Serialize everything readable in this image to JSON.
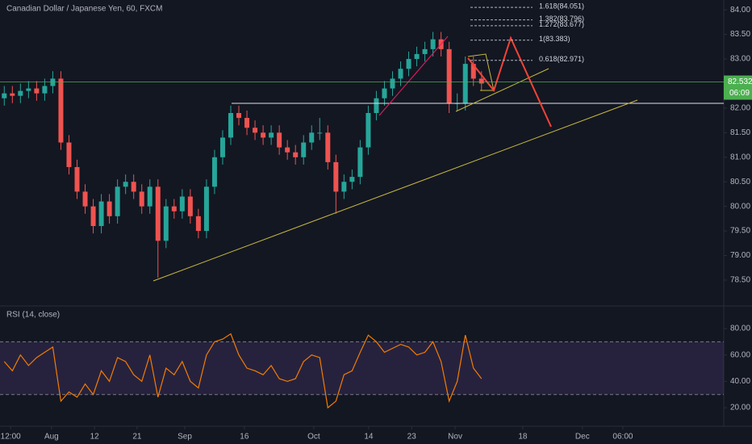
{
  "chart_data": {
    "type": "candlestick",
    "title": "Canadian Dollar / Japanese Yen, 60, FXCM",
    "up_color": "#26a69a",
    "down_color": "#ef5350",
    "x": [
      0,
      1.9,
      3.8,
      5.7,
      7.6,
      9.5,
      11.4,
      13.3,
      15.2,
      17.1,
      19,
      20.9,
      22.8,
      24.7,
      26.6,
      28.5,
      30.4,
      32.3,
      34.2,
      36.1,
      38,
      39.9,
      41.8,
      43.7,
      45.6,
      47.5,
      49.4,
      51.3,
      53.2,
      55.1,
      57,
      58.9,
      60.8,
      62.7,
      64.6,
      66.5,
      68.4,
      70.3,
      72.2,
      74.1,
      76,
      77.9,
      79.8,
      81.7,
      83.6,
      85.5,
      87.4,
      89.3,
      91.2,
      93.1,
      95,
      96.9,
      98.8,
      100.7,
      102.6,
      104.5,
      106.4,
      108.3,
      110.2,
      112.1
    ],
    "open": [
      82.2,
      82.3,
      82.25,
      82.35,
      82.4,
      82.3,
      82.45,
      82.6,
      81.3,
      80.8,
      80.3,
      80.0,
      79.6,
      80.1,
      79.8,
      80.4,
      80.5,
      80.3,
      80.0,
      80.4,
      79.3,
      80.0,
      79.9,
      80.2,
      79.8,
      79.5,
      80.4,
      81.0,
      81.4,
      81.9,
      81.8,
      81.6,
      81.5,
      81.4,
      81.5,
      81.2,
      81.1,
      81.0,
      81.3,
      81.5,
      81.5,
      80.9,
      80.3,
      80.5,
      80.6,
      81.2,
      81.9,
      82.2,
      82.4,
      82.6,
      82.8,
      83.0,
      83.1,
      83.2,
      83.4,
      83.2,
      82.1,
      82.1,
      82.9,
      82.6
    ],
    "high": [
      82.45,
      82.45,
      82.5,
      82.55,
      82.55,
      82.6,
      82.75,
      82.75,
      81.45,
      80.95,
      80.45,
      80.15,
      80.25,
      80.25,
      80.55,
      80.65,
      80.65,
      80.45,
      80.55,
      80.55,
      80.15,
      80.15,
      80.35,
      80.35,
      79.95,
      80.55,
      81.15,
      81.55,
      82.05,
      82.05,
      81.95,
      81.75,
      81.65,
      81.65,
      81.65,
      81.35,
      81.25,
      81.45,
      81.65,
      81.8,
      81.65,
      81.05,
      80.65,
      80.75,
      81.35,
      82.05,
      82.35,
      82.55,
      82.75,
      82.95,
      83.15,
      83.25,
      83.35,
      83.55,
      83.55,
      83.35,
      82.3,
      83.05,
      83.05,
      82.75
    ],
    "low": [
      82.05,
      82.1,
      82.1,
      82.2,
      82.15,
      82.15,
      82.3,
      81.15,
      80.65,
      80.15,
      79.85,
      79.45,
      79.45,
      79.65,
      79.65,
      80.25,
      80.15,
      79.85,
      79.85,
      78.55,
      79.15,
      79.75,
      79.75,
      79.65,
      79.35,
      79.35,
      80.25,
      80.85,
      81.25,
      81.65,
      81.45,
      81.35,
      81.25,
      81.25,
      81.05,
      80.95,
      80.85,
      80.85,
      81.15,
      81.35,
      80.75,
      79.85,
      80.15,
      80.35,
      80.45,
      81.05,
      81.75,
      82.05,
      82.25,
      82.45,
      82.65,
      82.85,
      82.95,
      83.05,
      83.05,
      81.9,
      81.95,
      81.95,
      82.45,
      82.35
    ],
    "close": [
      82.3,
      82.25,
      82.35,
      82.4,
      82.3,
      82.45,
      82.6,
      81.3,
      80.8,
      80.3,
      80.0,
      79.6,
      80.1,
      79.8,
      80.4,
      80.5,
      80.3,
      80.0,
      80.4,
      79.3,
      80.0,
      79.9,
      80.2,
      79.8,
      79.5,
      80.4,
      81.0,
      81.4,
      81.9,
      81.8,
      81.6,
      81.5,
      81.4,
      81.5,
      81.2,
      81.1,
      81.0,
      81.3,
      81.5,
      81.5,
      80.9,
      80.3,
      80.5,
      80.6,
      81.2,
      81.9,
      82.2,
      82.4,
      82.6,
      82.8,
      83.0,
      83.1,
      83.2,
      83.4,
      83.2,
      82.1,
      82.1,
      82.9,
      82.6,
      82.5
    ],
    "xlim": [
      -1,
      169
    ],
    "xticks": [
      {
        "value": 1.5,
        "label": "12:00"
      },
      {
        "value": 11.1,
        "label": "Aug"
      },
      {
        "value": 21.2,
        "label": "12"
      },
      {
        "value": 31.2,
        "label": "21"
      },
      {
        "value": 42.4,
        "label": "Sep"
      },
      {
        "value": 56.4,
        "label": "16"
      },
      {
        "value": 72.7,
        "label": "Oct"
      },
      {
        "value": 85.6,
        "label": "14"
      },
      {
        "value": 95.7,
        "label": "23"
      },
      {
        "value": 105.9,
        "label": "Nov"
      },
      {
        "value": 121.8,
        "label": "18"
      },
      {
        "value": 135.8,
        "label": "Dec"
      },
      {
        "value": 145.3,
        "label": "06:00"
      }
    ],
    "ylim": [
      77.99,
      84.2
    ],
    "yticks": [
      {
        "value": 78.5,
        "label": "78.50"
      },
      {
        "value": 79,
        "label": "79.00"
      },
      {
        "value": 79.5,
        "label": "79.50"
      },
      {
        "value": 80,
        "label": "80.00"
      },
      {
        "value": 80.5,
        "label": "80.50"
      },
      {
        "value": 81,
        "label": "81.00"
      },
      {
        "value": 81.5,
        "label": "81.50"
      },
      {
        "value": 82,
        "label": "82.00"
      },
      {
        "value": 82.5,
        "label": "82.50"
      },
      {
        "value": 83,
        "label": "83.00"
      },
      {
        "value": 83.5,
        "label": "83.50"
      },
      {
        "value": 84,
        "label": "84.00"
      }
    ],
    "last_price": {
      "value": 82.532,
      "label": "82.532",
      "color": "#4caf50"
    },
    "countdown": "06:09",
    "fib_levels": [
      {
        "value": 84.051,
        "label": "1.618(84.051)"
      },
      {
        "value": 83.796,
        "label": "1.382(83.796)"
      },
      {
        "value": 83.677,
        "label": "1.272(83.677)"
      },
      {
        "value": 83.383,
        "label": "1(83.383)"
      },
      {
        "value": 82.971,
        "label": "0.618(82.971)"
      }
    ],
    "indicator": {
      "type": "line",
      "title": "RSI (14, close)",
      "color": "#f57c00",
      "values": [
        55,
        48,
        60,
        52,
        58,
        62,
        66,
        25,
        32,
        28,
        38,
        30,
        48,
        40,
        58,
        55,
        45,
        40,
        60,
        28,
        50,
        45,
        55,
        40,
        35,
        60,
        70,
        72,
        76,
        60,
        50,
        48,
        45,
        52,
        42,
        40,
        42,
        55,
        60,
        58,
        20,
        25,
        45,
        48,
        62,
        75,
        70,
        62,
        65,
        68,
        66,
        60,
        62,
        70,
        55,
        25,
        40,
        75,
        50,
        42
      ],
      "ylim": [
        6,
        96.5
      ],
      "yticks": [
        {
          "value": 20,
          "label": "20.00"
        },
        {
          "value": 40,
          "label": "40.00"
        },
        {
          "value": 60,
          "label": "60.00"
        },
        {
          "value": 80,
          "label": "80.00"
        }
      ],
      "bands": [
        30,
        70
      ]
    }
  }
}
